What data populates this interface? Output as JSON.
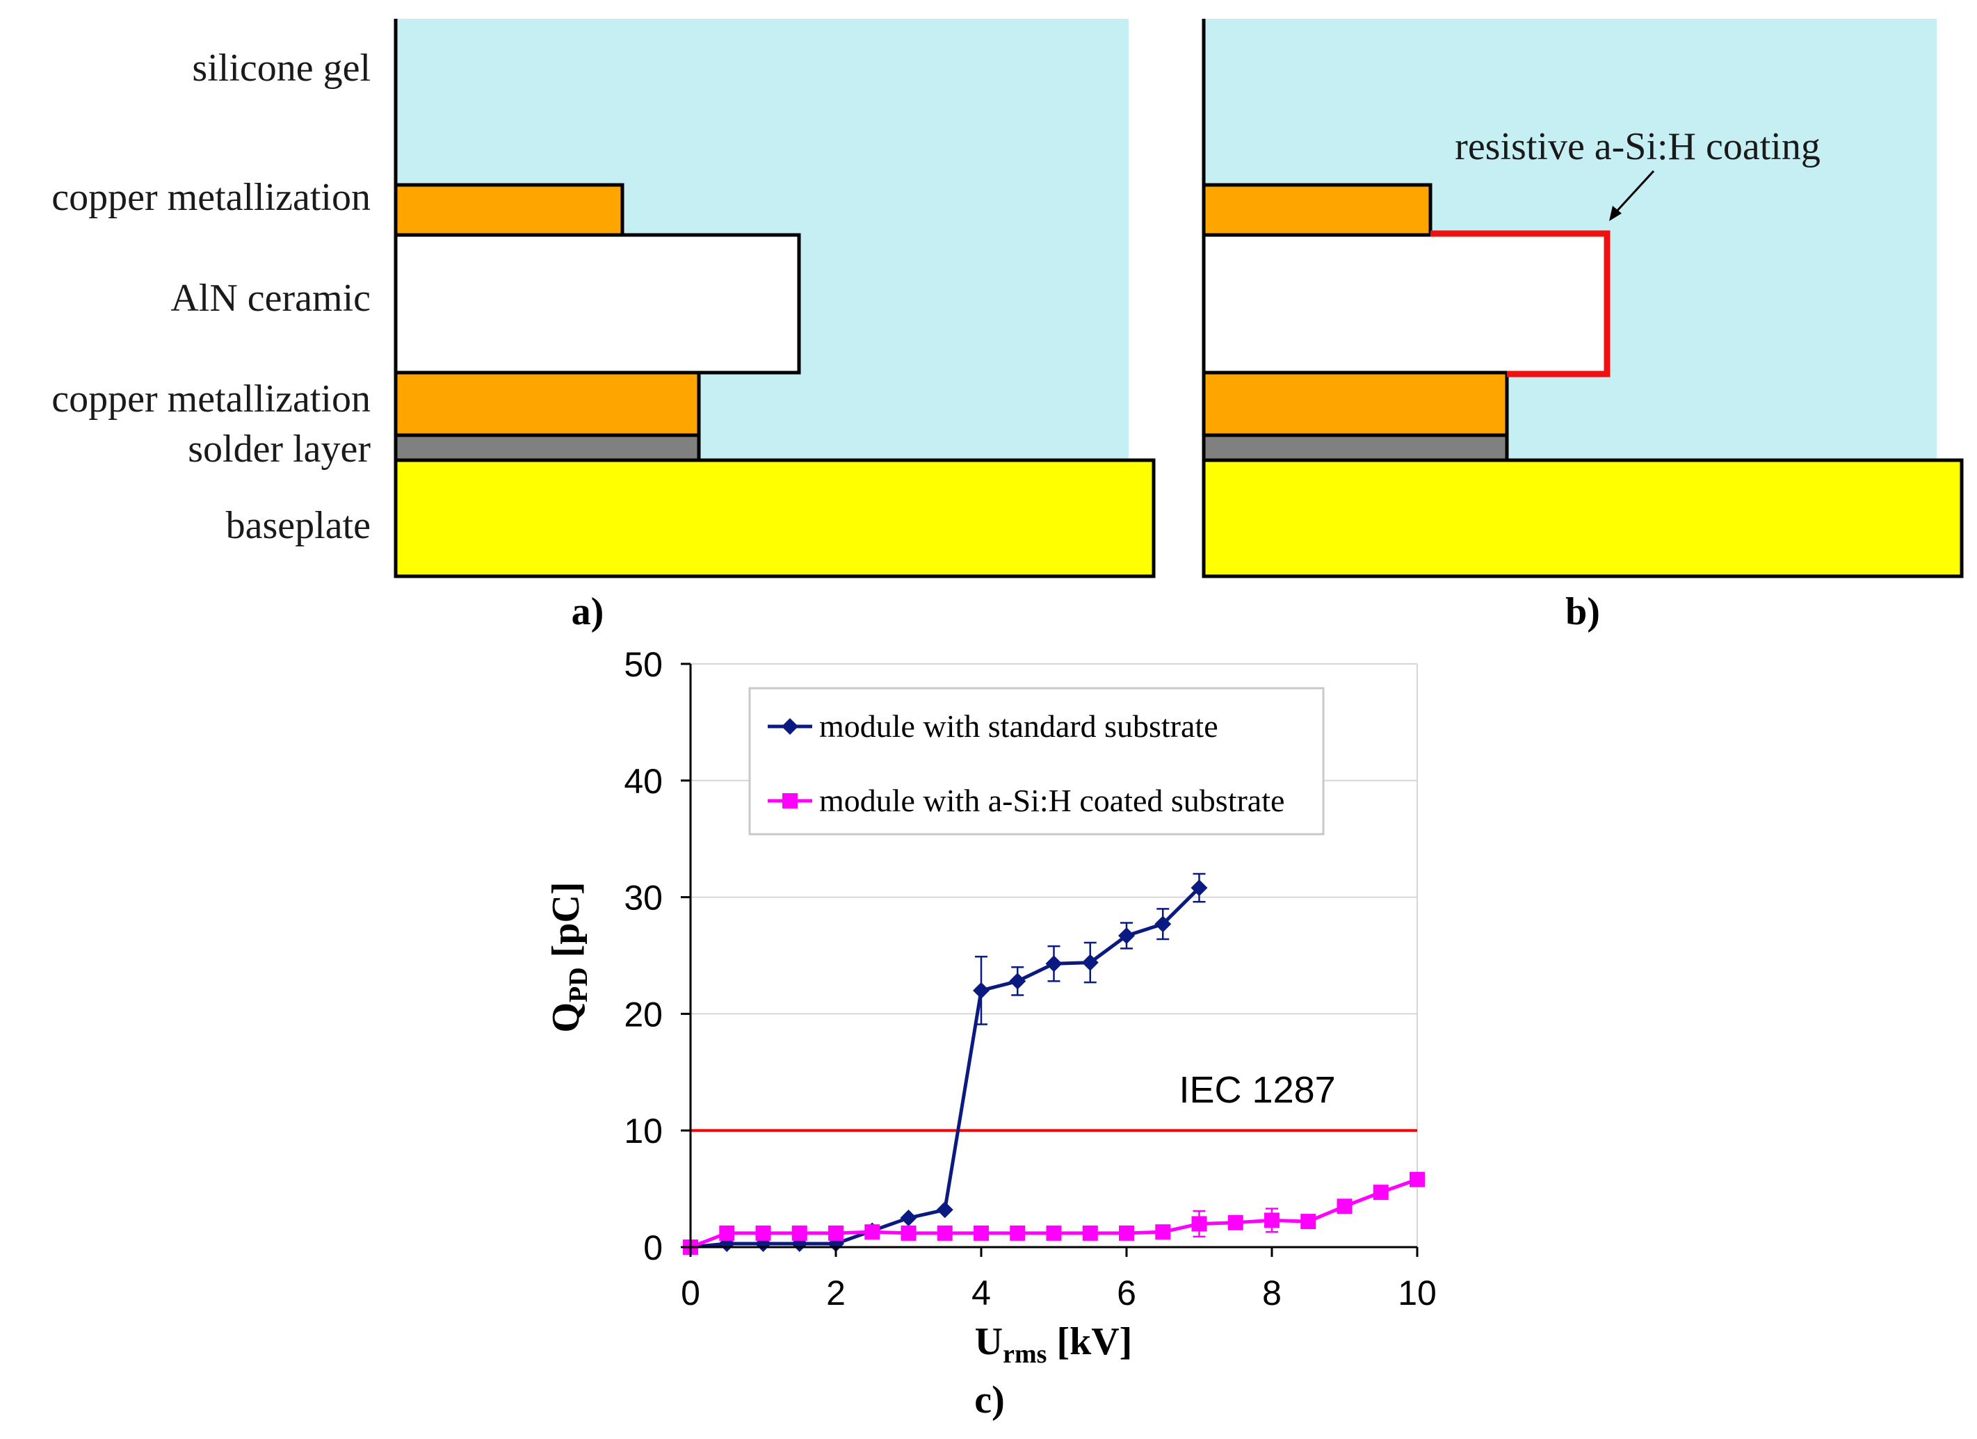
{
  "colors": {
    "gel": "#c5eff3",
    "copper": "#ffa500",
    "ceramic": "#ffffff",
    "solder": "#808080",
    "baseplate": "#ffff00",
    "coating": "#ee1111",
    "series_standard": "#0a1a80",
    "series_coated": "#ff00ff",
    "iec_line": "#ff0000",
    "grid": "#d6d6d6"
  },
  "layer_labels": {
    "silicone_gel": "silicone gel",
    "copper_top": "copper metallization",
    "aln": "AlN ceramic",
    "copper_bottom": "copper metallization",
    "solder": "solder layer",
    "baseplate": "baseplate"
  },
  "coating_label": "resistive a-Si:H coating",
  "panel_labels": {
    "a": "a)",
    "b": "b)",
    "c": "c)"
  },
  "chart_data": {
    "type": "line",
    "xlabel": {
      "main": "U",
      "sub": "rms",
      "unit": " [kV]"
    },
    "ylabel": {
      "main": "Q",
      "sub": "PD",
      "unit": " [pC]"
    },
    "xlim": [
      0,
      10
    ],
    "ylim": [
      0,
      50
    ],
    "xticks": [
      0,
      2,
      4,
      6,
      8,
      10
    ],
    "yticks": [
      0,
      10,
      20,
      30,
      40,
      50
    ],
    "grid": true,
    "legend_position": "top-left",
    "series": [
      {
        "name": "module with standard substrate",
        "marker": "diamond",
        "x": [
          0,
          0.5,
          1,
          1.5,
          2,
          2.5,
          3,
          3.5,
          4,
          4.5,
          5,
          5.5,
          6,
          6.5,
          7
        ],
        "y": [
          0,
          0.3,
          0.3,
          0.3,
          0.3,
          1.4,
          2.5,
          3.2,
          22,
          22.8,
          24.3,
          24.4,
          26.7,
          27.7,
          30.8
        ],
        "err": [
          0,
          0,
          0,
          0,
          0,
          0,
          0,
          0,
          2.9,
          1.2,
          1.5,
          1.7,
          1.1,
          1.3,
          1.2
        ]
      },
      {
        "name": "module with a-Si:H coated substrate",
        "marker": "square",
        "x": [
          0,
          0.5,
          1,
          1.5,
          2,
          2.5,
          3,
          3.5,
          4,
          4.5,
          5,
          5.5,
          6,
          6.5,
          7,
          7.5,
          8,
          8.5,
          9,
          9.5,
          10
        ],
        "y": [
          0,
          1.2,
          1.2,
          1.2,
          1.2,
          1.3,
          1.2,
          1.2,
          1.2,
          1.2,
          1.2,
          1.2,
          1.2,
          1.3,
          2.0,
          2.1,
          2.3,
          2.2,
          3.5,
          4.7,
          5.8
        ],
        "err": [
          0,
          0,
          0,
          0,
          0,
          0,
          0,
          0,
          0,
          0,
          0,
          0,
          0,
          0,
          1.1,
          0,
          1.0,
          0,
          0,
          0,
          0
        ]
      }
    ],
    "reference_line": {
      "label": "IEC 1287",
      "y": 10
    }
  }
}
